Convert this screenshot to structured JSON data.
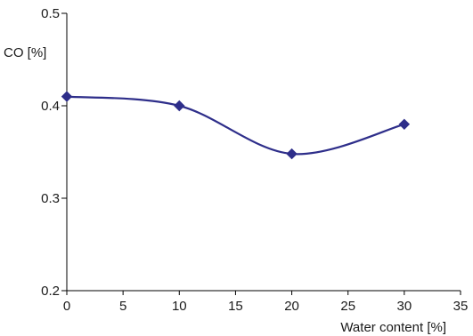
{
  "chart_data": {
    "type": "line",
    "title": "",
    "xlabel": "Water content [%]",
    "ylabel": "CO [%]",
    "xlim": [
      0,
      35
    ],
    "ylim": [
      0.2,
      0.5
    ],
    "x_ticks": [
      "0",
      "5",
      "10",
      "15",
      "20",
      "25",
      "30",
      "35"
    ],
    "y_ticks": [
      "0.2",
      "0.3",
      "0.4",
      "0.5"
    ],
    "grid": false,
    "smooth": true,
    "series": [
      {
        "color": "#2e2e8a",
        "marker": "diamond",
        "x": [
          0,
          10,
          20,
          30
        ],
        "y": [
          0.41,
          0.4,
          0.348,
          0.38
        ]
      }
    ]
  }
}
